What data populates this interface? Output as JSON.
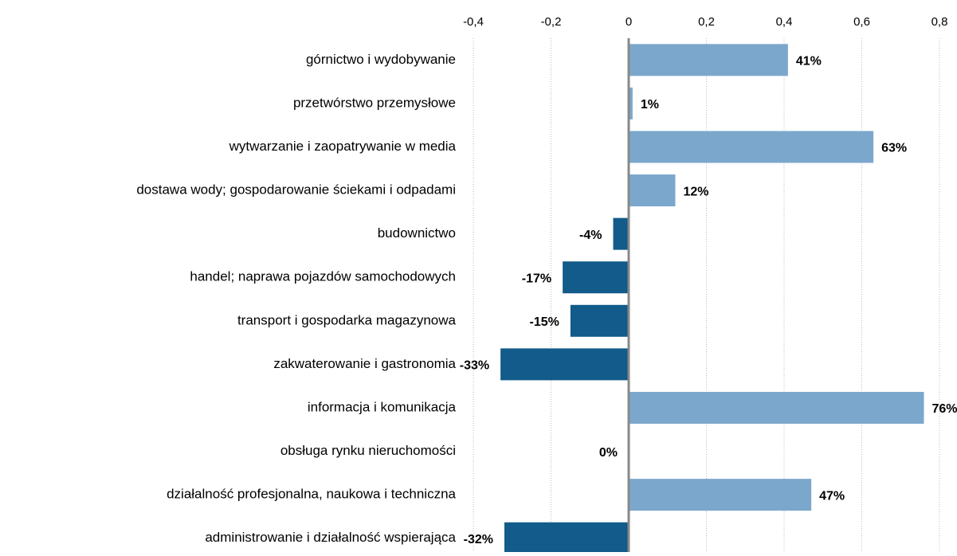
{
  "chart_data": {
    "type": "barh",
    "categories": [
      "górnictwo i wydobywanie",
      "przetwórstwo przemysłowe",
      "wytwarzanie i zaopatrywanie w media",
      "dostawa wody; gospodarowanie ściekami i odpadami",
      "budownictwo",
      "handel; naprawa pojazdów samochodowych",
      "transport i gospodarka magazynowa",
      "zakwaterowanie i gastronomia",
      "informacja i komunikacja",
      "obsługa rynku nieruchomości",
      "działalność profesjonalna, naukowa i techniczna",
      "administrowanie i działalność wspierająca"
    ],
    "values": [
      0.41,
      0.01,
      0.63,
      0.12,
      -0.04,
      -0.17,
      -0.15,
      -0.33,
      0.76,
      0,
      0.47,
      -0.32
    ],
    "value_labels": [
      "41%",
      "1%",
      "63%",
      "12%",
      "-4%",
      "-17%",
      "-15%",
      "-33%",
      "76%",
      "0%",
      "47%",
      "-32%"
    ],
    "colors": [
      "#7ba7cc",
      "#7ba7cc",
      "#7ba7cc",
      "#7ba7cc",
      "#125b8a",
      "#125b8a",
      "#125b8a",
      "#125b8a",
      "#7ba7cc",
      "#125b8a",
      "#7ba7cc",
      "#125b8a"
    ],
    "xlim": [
      -0.4,
      0.8
    ],
    "xticks": [
      {
        "value": -0.4,
        "label": "-0,4"
      },
      {
        "value": -0.2,
        "label": "-0,2"
      },
      0,
      {
        "value": 0.2,
        "label": "0,2"
      },
      {
        "value": 0.4,
        "label": "0,4"
      },
      {
        "value": 0.6,
        "label": "0,6"
      },
      {
        "value": 0.8,
        "label": "0,8"
      }
    ],
    "grid": true
  }
}
